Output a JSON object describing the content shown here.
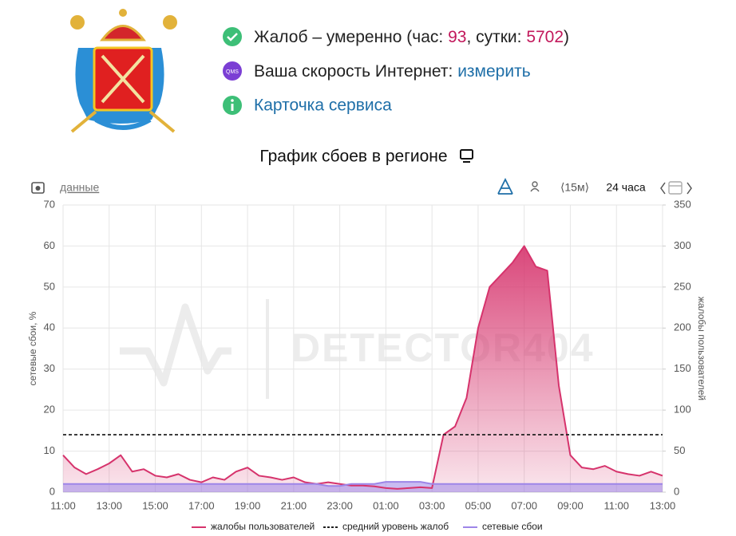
{
  "status": {
    "prefix": "Жалоб – умеренно (час: ",
    "hour": 93,
    "middle": ", сутки: ",
    "day": 5702,
    "suffix": ")"
  },
  "speed": {
    "icon": "QMS",
    "label": "Ваша скорость Интернет: ",
    "link": "измерить"
  },
  "service_card": "Карточка сервиса",
  "toolbar": {
    "data_link": "данные",
    "interval": "⟨15м⟩",
    "period": "24 часа"
  },
  "chart_data": {
    "type": "area",
    "title": "График сбоев в регионе",
    "watermark": "DETECTOR404",
    "ylabel": "сетевые сбои, %",
    "y2label": "жалобы пользователей",
    "x": [
      11,
      11.5,
      12,
      12.5,
      13,
      13.5,
      14,
      14.5,
      15,
      15.5,
      16,
      16.5,
      17,
      17.5,
      18,
      18.5,
      19,
      19.5,
      20,
      20.5,
      21,
      21.5,
      22,
      22.5,
      23,
      23.5,
      24,
      24.5,
      25,
      25.5,
      26,
      26.5,
      27,
      27.5,
      28,
      28.5,
      29,
      29.5,
      30,
      30.5,
      31,
      31.5,
      32,
      32.5,
      33,
      33.5,
      34,
      34.5,
      35,
      35.5,
      36,
      36.5,
      37
    ],
    "xlim": [
      11,
      37
    ],
    "xticks": [
      {
        "value": 11,
        "label": "11:00"
      },
      {
        "value": 13,
        "label": "13:00"
      },
      {
        "value": 15,
        "label": "15:00"
      },
      {
        "value": 17,
        "label": "17:00"
      },
      {
        "value": 19,
        "label": "19:00"
      },
      {
        "value": 21,
        "label": "21:00"
      },
      {
        "value": 23,
        "label": "23:00"
      },
      {
        "value": 25,
        "label": "01:00"
      },
      {
        "value": 27,
        "label": "03:00"
      },
      {
        "value": 29,
        "label": "05:00"
      },
      {
        "value": 31,
        "label": "07:00"
      },
      {
        "value": 33,
        "label": "09:00"
      },
      {
        "value": 35,
        "label": "11:00"
      },
      {
        "value": 37,
        "label": "13:00"
      }
    ],
    "ylim": [
      0,
      70
    ],
    "yticks": [
      0,
      10,
      20,
      30,
      40,
      50,
      60,
      70
    ],
    "y2lim": [
      0,
      350
    ],
    "y2ticks": [
      0,
      50,
      100,
      150,
      200,
      250,
      300,
      350
    ],
    "grid": true,
    "legend": "bottom",
    "series": [
      {
        "name": "жалобы пользователей",
        "color": "#d6336c",
        "axis": "y2",
        "values": [
          45,
          30,
          22,
          28,
          35,
          45,
          25,
          28,
          20,
          18,
          22,
          15,
          12,
          18,
          15,
          25,
          30,
          20,
          18,
          15,
          18,
          12,
          10,
          12,
          10,
          8,
          8,
          7,
          5,
          4,
          5,
          6,
          5,
          70,
          80,
          115,
          200,
          250,
          265,
          280,
          300,
          275,
          270,
          130,
          45,
          30,
          28,
          32,
          25,
          22,
          20,
          25,
          20
        ]
      },
      {
        "name": "средний уровень жалоб",
        "color": "#222222",
        "axis": "y2",
        "style": "dashed",
        "value": 70
      },
      {
        "name": "сетевые сбои",
        "color": "#9d85e8",
        "axis": "y",
        "values": [
          2,
          2,
          2,
          2,
          2,
          2,
          2,
          2,
          2,
          2,
          2,
          2,
          2,
          2,
          2,
          2,
          2,
          2,
          2,
          2,
          2,
          2,
          2,
          1.5,
          1.5,
          2,
          2,
          2,
          2.5,
          2.5,
          2.5,
          2.5,
          2,
          2,
          2,
          2,
          2,
          2,
          2,
          2,
          2,
          2,
          2,
          2,
          2,
          2,
          2,
          2,
          2,
          2,
          2,
          2,
          2
        ]
      }
    ]
  }
}
